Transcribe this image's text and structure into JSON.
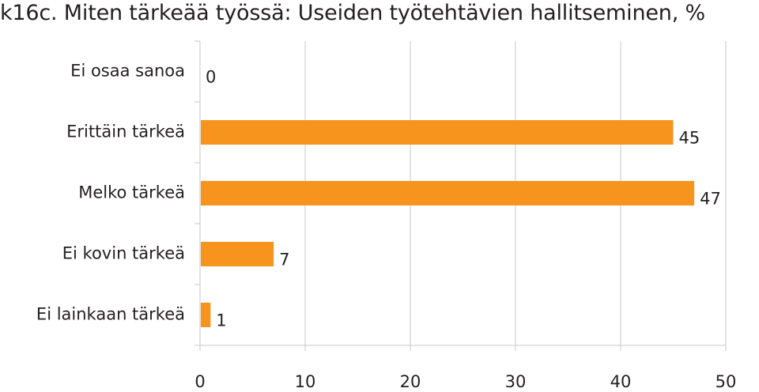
{
  "title": "k16c. Miten tärkeää työssä: Useiden työtehtävien hallitseminen, %",
  "colors": {
    "bar": "#f7941d",
    "grid": "#c9c9c9",
    "text": "#231f20"
  },
  "chart_data": {
    "type": "bar",
    "orientation": "horizontal",
    "title": "k16c. Miten tärkeää työssä: Useiden työtehtävien hallitseminen, %",
    "categories": [
      "Ei osaa sanoa",
      "Erittäin tärkeä",
      "Melko tärkeä",
      "Ei kovin tärkeä",
      "Ei lainkaan tärkeä"
    ],
    "values": [
      0,
      45,
      47,
      7,
      1
    ],
    "xlim": [
      0,
      50
    ],
    "xticks": [
      0,
      10,
      20,
      30,
      40,
      50
    ],
    "xlabel": "",
    "ylabel": "",
    "grid": true,
    "data_labels": true
  }
}
